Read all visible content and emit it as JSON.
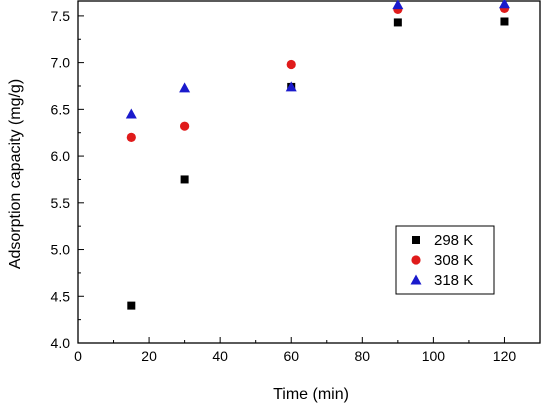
{
  "chart_data": {
    "type": "scatter",
    "title": "",
    "xlabel": "Time (min)",
    "ylabel": "Adsorption capacity (mg/g)",
    "xlim": [
      0,
      130
    ],
    "ylim": [
      4.0,
      7.6
    ],
    "x_ticks": [
      "0",
      "20",
      "40",
      "60",
      "80",
      "100",
      "120"
    ],
    "y_ticks": [
      "4.0",
      "4.5",
      "5.0",
      "5.5",
      "6.0",
      "6.5",
      "7.0",
      "7.5"
    ],
    "grid": false,
    "legend_position": "bottom-right",
    "series": [
      {
        "name": "298 K",
        "marker": "square",
        "color": "#000000",
        "x": [
          15,
          30,
          60,
          90,
          120
        ],
        "y": [
          4.4,
          5.75,
          6.74,
          7.43,
          7.44
        ]
      },
      {
        "name": "308 K",
        "marker": "circle",
        "color": "#e01b1b",
        "x": [
          15,
          30,
          60,
          90,
          120
        ],
        "y": [
          6.2,
          6.32,
          6.98,
          7.57,
          7.58
        ]
      },
      {
        "name": "318 K",
        "marker": "triangle",
        "color": "#1a1acc",
        "x": [
          15,
          30,
          60,
          90,
          120
        ],
        "y": [
          6.45,
          6.73,
          6.74,
          7.62,
          7.63
        ]
      }
    ]
  }
}
